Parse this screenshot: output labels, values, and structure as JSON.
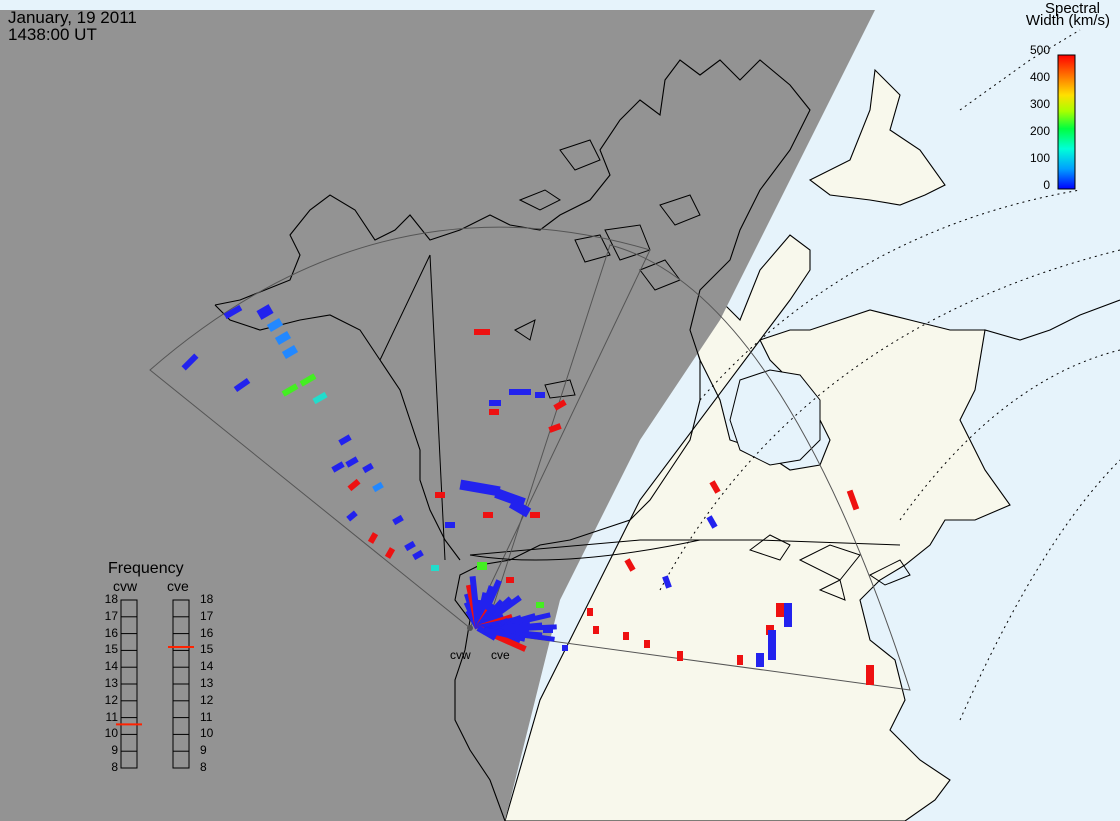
{
  "header": {
    "date": "January, 19 2011",
    "time": "1438:00 UT"
  },
  "colorbar": {
    "title_line1": "Spectral",
    "title_line2": "Width (km/s)",
    "ticks": [
      "500",
      "400",
      "300",
      "200",
      "100",
      "0"
    ],
    "min": 0,
    "max": 500,
    "colors": [
      "#0000ff",
      "#00a0ff",
      "#00ffd8",
      "#00ff40",
      "#a8ff00",
      "#ffe000",
      "#ff8000",
      "#ff0000"
    ]
  },
  "frequency_panel": {
    "title": "Frequency",
    "radar_left_label": "cvw",
    "radar_right_label": "cve",
    "scale": [
      "18",
      "17",
      "16",
      "15",
      "14",
      "13",
      "12",
      "11",
      "10",
      "9",
      "8"
    ],
    "cvw_frequency_mhz": 10.6,
    "cve_frequency_mhz": 15.2
  },
  "radars": {
    "west_label": "cvw",
    "east_label": "cve"
  },
  "map_colors": {
    "night": "#939393",
    "day": "#f8f8ec",
    "ocean": "#e6f3fb"
  }
}
